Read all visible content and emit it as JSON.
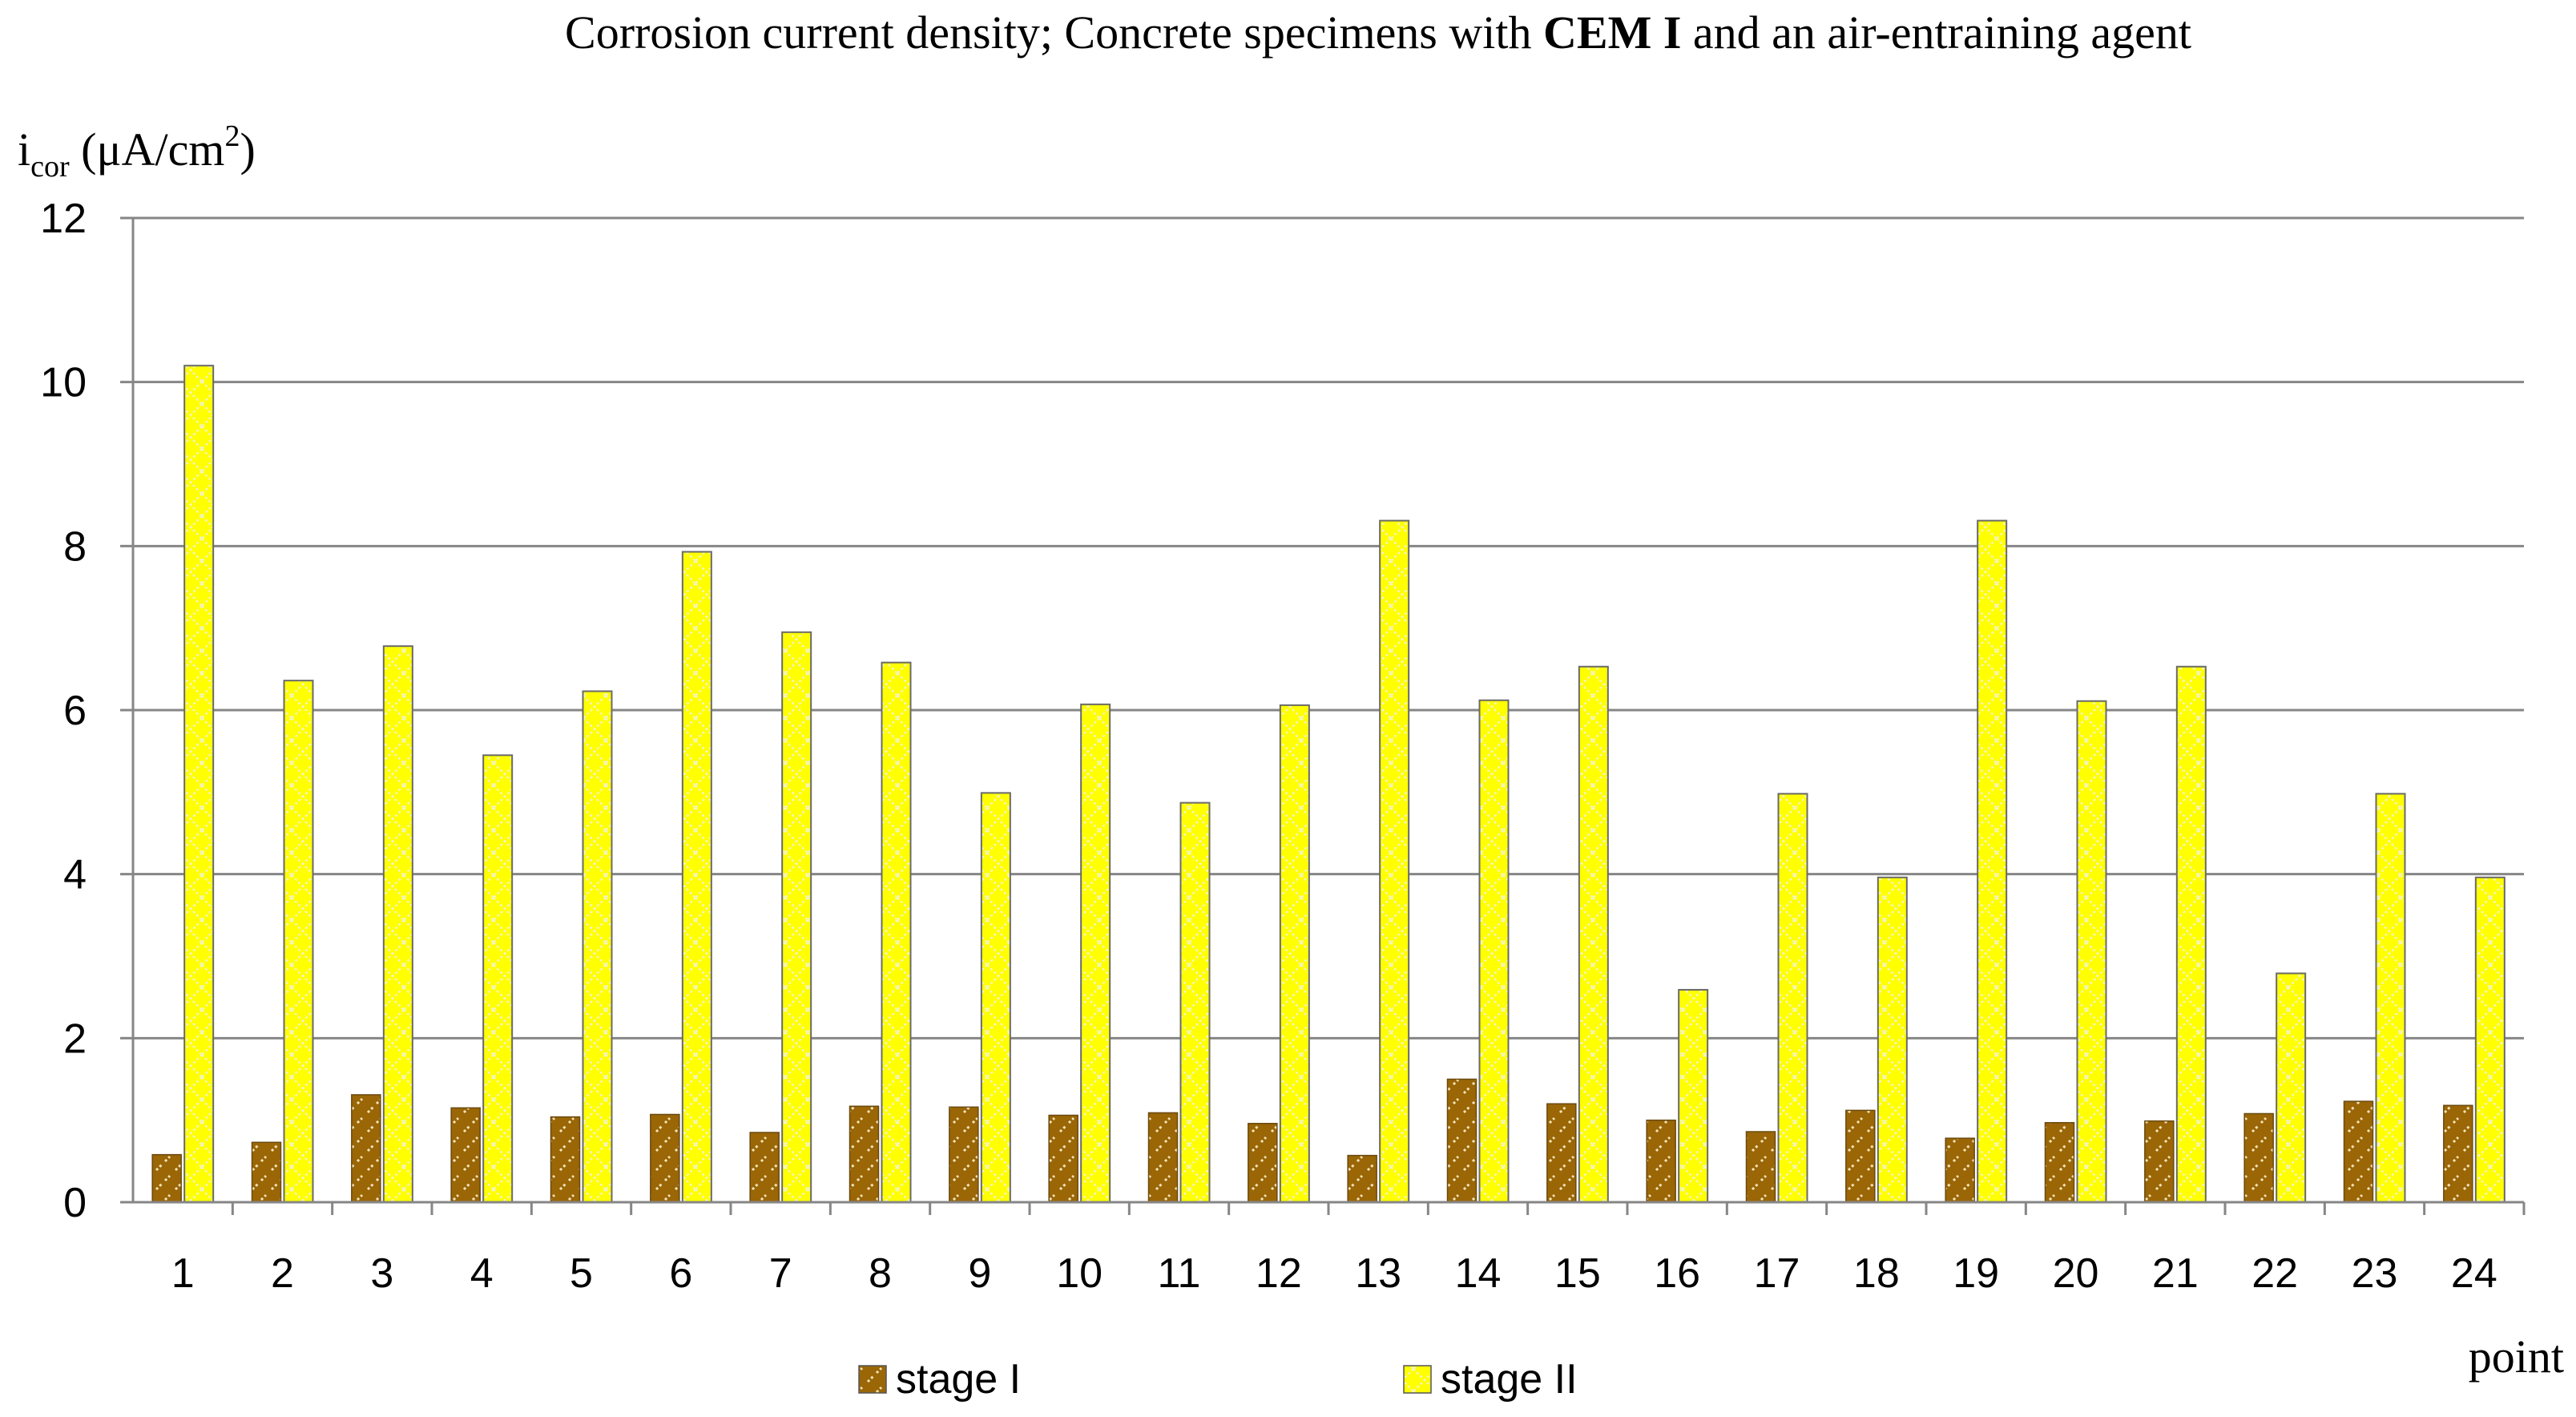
{
  "chart_data": {
    "type": "bar",
    "title": {
      "prefix": "Corrosion current density; Concrete specimens with ",
      "bold": "CEM I",
      "suffix": " and an air-entraining agent"
    },
    "ylabel": {
      "main": "i",
      "sub": "cor",
      "unit": " (μA/cm",
      "sup": "2",
      "close": ")"
    },
    "xlabel": "point",
    "ylim": [
      0,
      12
    ],
    "yticks": [
      0,
      2,
      4,
      6,
      8,
      10,
      12
    ],
    "grid": true,
    "legend_position": "bottom",
    "categories": [
      "1",
      "2",
      "3",
      "4",
      "5",
      "6",
      "7",
      "8",
      "9",
      "10",
      "11",
      "12",
      "13",
      "14",
      "15",
      "16",
      "17",
      "18",
      "19",
      "20",
      "21",
      "22",
      "23",
      "24"
    ],
    "series": [
      {
        "name": "stage I",
        "color": "#9a6606",
        "pattern_color": "#f3e3b8",
        "values": [
          0.58,
          0.73,
          1.31,
          1.15,
          1.04,
          1.07,
          0.85,
          1.17,
          1.16,
          1.06,
          1.09,
          0.96,
          0.57,
          1.5,
          1.2,
          1.0,
          0.86,
          1.12,
          0.78,
          0.97,
          0.99,
          1.08,
          1.23,
          1.18
        ]
      },
      {
        "name": "stage II",
        "color": "#ffff00",
        "pattern_color": "#f4f4c0",
        "values": [
          10.2,
          6.36,
          6.78,
          5.45,
          6.23,
          7.93,
          6.95,
          6.58,
          4.99,
          6.07,
          4.87,
          6.06,
          8.31,
          6.12,
          6.53,
          2.59,
          4.98,
          3.96,
          8.31,
          6.11,
          6.53,
          2.79,
          4.98,
          3.96
        ]
      }
    ]
  }
}
